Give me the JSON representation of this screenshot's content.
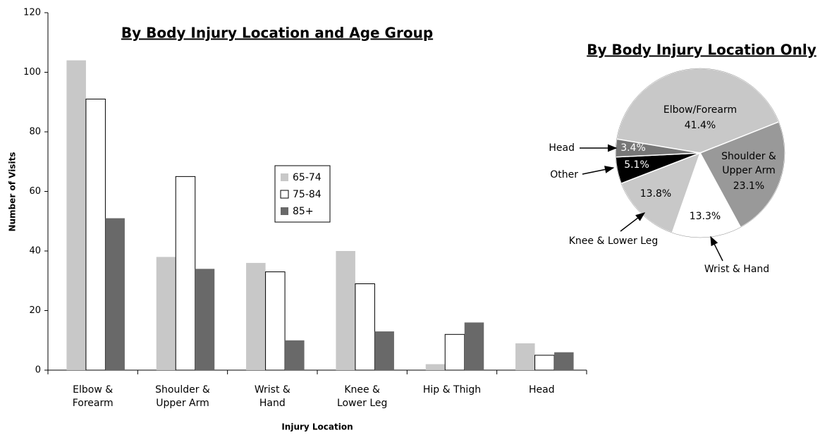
{
  "chart_data": [
    {
      "type": "bar",
      "title": "By Body Injury Location and Age Group",
      "xlabel": "Injury Location",
      "ylabel": "Number of Visits",
      "categories": [
        [
          "Elbow &",
          "Forearm"
        ],
        [
          "Shoulder &",
          "Upper Arm"
        ],
        [
          "Wrist &",
          "Hand"
        ],
        [
          "Knee &",
          "Lower Leg"
        ],
        [
          "Hip & Thigh"
        ],
        [
          "Head"
        ]
      ],
      "series": [
        {
          "name": "65-74",
          "color": "#c8c8c8",
          "values": [
            104,
            38,
            36,
            40,
            2,
            9
          ]
        },
        {
          "name": "75-84",
          "color": "#ffffff",
          "values": [
            91,
            65,
            33,
            29,
            12,
            5
          ]
        },
        {
          "name": "85+",
          "color": "#696969",
          "values": [
            51,
            34,
            10,
            13,
            16,
            6
          ]
        }
      ],
      "ylim": [
        0,
        120
      ],
      "yticks": [
        0,
        20,
        40,
        60,
        80,
        100,
        120
      ]
    },
    {
      "type": "pie",
      "title": "By Body Injury Location Only",
      "categories": [
        [
          "Elbow/Forearm"
        ],
        [
          "Shoulder &",
          "Upper Arm"
        ],
        [
          "Wrist & Hand"
        ],
        [
          "Knee & Lower Leg"
        ],
        [
          "Other"
        ],
        [
          "Head"
        ]
      ],
      "values": [
        41.4,
        23.1,
        13.3,
        13.8,
        5.1,
        3.4
      ],
      "value_labels": [
        "41.4%",
        "23.1%",
        "13.3%",
        "13.8%",
        "5.1%",
        "3.4%"
      ],
      "colors": [
        "#c8c8c8",
        "#999999",
        "#ffffff",
        "#c8c8c8",
        "#000000",
        "#777777"
      ]
    }
  ]
}
